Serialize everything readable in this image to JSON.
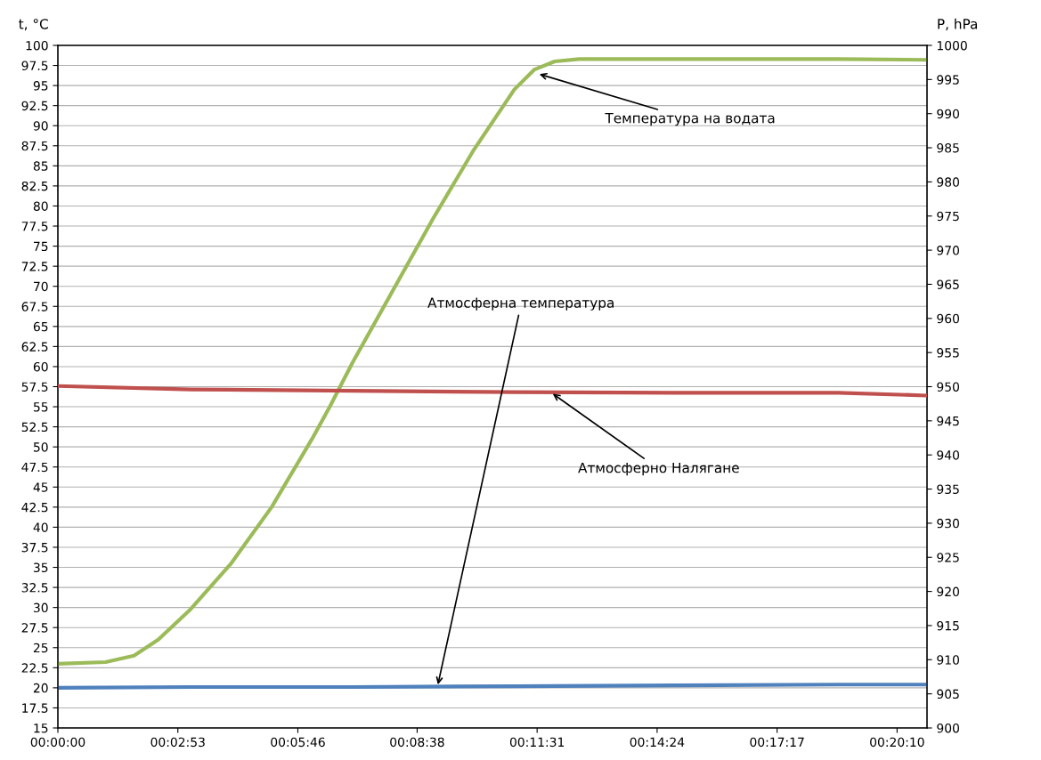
{
  "chart_data": {
    "type": "line",
    "ylabel": "t, °C",
    "y2label": "P, hPa",
    "xlim": [
      0,
      0.3481
    ],
    "xticks": [
      {
        "value": 0,
        "label": "00:00:00"
      },
      {
        "value": 0.048056,
        "label": "00:02:53"
      },
      {
        "value": 0.096111,
        "label": "00:05:46"
      },
      {
        "value": 0.143889,
        "label": "00:08:38"
      },
      {
        "value": 0.191944,
        "label": "00:11:31"
      },
      {
        "value": 0.24,
        "label": "00:14:24"
      },
      {
        "value": 0.288056,
        "label": "00:17:17"
      },
      {
        "value": 0.336111,
        "label": "00:20:10"
      }
    ],
    "ylim": [
      15,
      100
    ],
    "yticks": [
      15,
      17.5,
      20,
      22.5,
      25,
      27.5,
      30,
      32.5,
      35,
      37.5,
      40,
      42.5,
      45,
      47.5,
      50,
      52.5,
      55,
      57.5,
      60,
      62.5,
      65,
      67.5,
      70,
      72.5,
      75,
      77.5,
      80,
      82.5,
      85,
      87.5,
      90,
      92.5,
      95,
      97.5,
      100
    ],
    "y2lim": [
      900,
      1000
    ],
    "y2ticks": [
      900,
      905,
      910,
      915,
      920,
      925,
      930,
      935,
      940,
      945,
      950,
      955,
      960,
      965,
      970,
      975,
      980,
      985,
      990,
      995,
      1000
    ],
    "grid": "y",
    "line_style": "solid",
    "marker": "none",
    "series": [
      {
        "color": "#9bbb59",
        "x": [
          0,
          0.0191,
          0.0305,
          0.0402,
          0.0532,
          0.0694,
          0.0856,
          0.1018,
          0.1089,
          0.118,
          0.1342,
          0.1504,
          0.1666,
          0.1828,
          0.1909,
          0.199,
          0.2088,
          0.2476,
          0.3125,
          0.3481
        ],
        "values": [
          23,
          23.2,
          24,
          26,
          29.8,
          35.5,
          42.5,
          51,
          55,
          60.5,
          69.5,
          78.5,
          87,
          94.5,
          97,
          98,
          98.3,
          98.3,
          98.3,
          98.2
        ]
      },
      {
        "color": "#c0504d",
        "axis": "y2",
        "x": [
          0,
          0.0532,
          0.118,
          0.1828,
          0.2476,
          0.3125,
          0.3481
        ],
        "values": [
          950.1,
          949.6,
          949.4,
          949.2,
          949.1,
          949.1,
          948.7
        ]
      },
      {
        "color": "#4f81bd",
        "x": [
          0,
          0.0532,
          0.118,
          0.1828,
          0.2476,
          0.3125,
          0.3481
        ],
        "values": [
          20,
          20.1,
          20.1,
          20.2,
          20.3,
          20.4,
          20.4
        ]
      }
    ],
    "annotations": [
      {
        "text": "Температура на водата",
        "x": 0.1919,
        "y": 96.5
      },
      {
        "text": "Атмосферно Налягане",
        "x": 0.1974,
        "y": 56.8
      },
      {
        "text": "Атмосферна температура",
        "x": 0.152,
        "y": 20.1
      }
    ]
  }
}
